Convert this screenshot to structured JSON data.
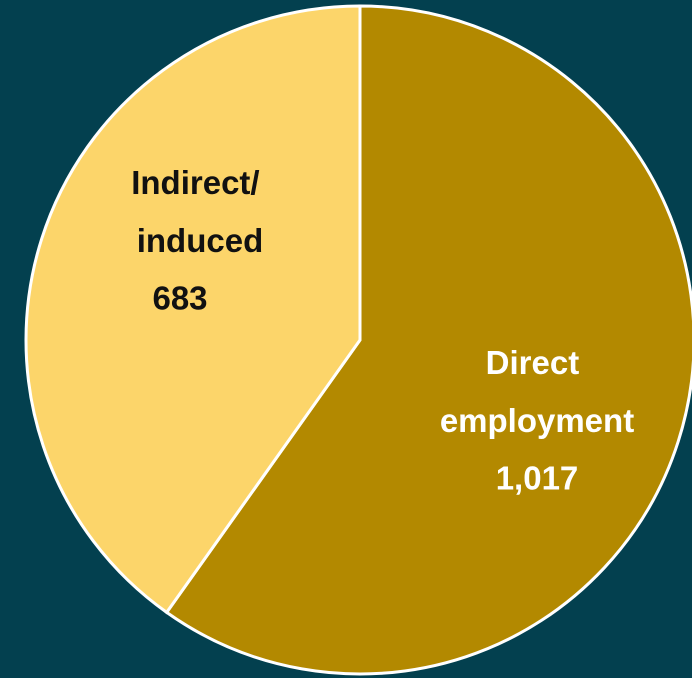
{
  "chart_data": {
    "type": "pie",
    "categories": [
      "Direct employment",
      "Indirect/ induced"
    ],
    "values": [
      1017,
      683
    ],
    "value_labels": [
      "1,017",
      "683"
    ],
    "colors": [
      "#b38900",
      "#fcd56a"
    ],
    "label_colors": [
      "#ffffff",
      "#111111"
    ]
  }
}
